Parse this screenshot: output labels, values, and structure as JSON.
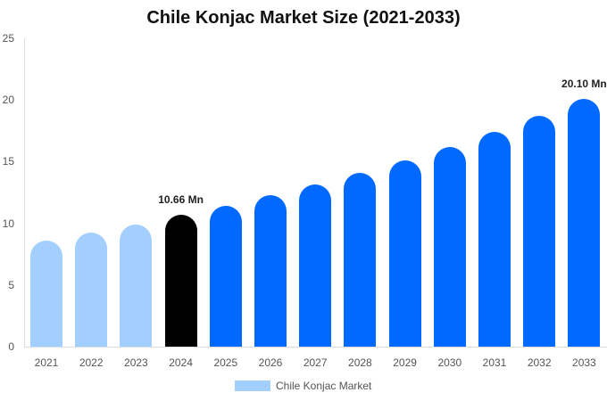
{
  "chart_data": {
    "type": "bar",
    "title": "Chile Konjac Market Size (2021-2033)",
    "xlabel": "",
    "ylabel": "",
    "ylim": [
      0,
      25
    ],
    "yticks": [
      0,
      5,
      10,
      15,
      20,
      25
    ],
    "grid": false,
    "legend_position": "bottom",
    "categories": [
      "2021",
      "2022",
      "2023",
      "2024",
      "2025",
      "2026",
      "2027",
      "2028",
      "2029",
      "2030",
      "2031",
      "2032",
      "2033"
    ],
    "series": [
      {
        "name": "Chile Konjac Market",
        "values": [
          8.6,
          9.25,
          9.9,
          10.66,
          11.4,
          12.3,
          13.15,
          14.1,
          15.1,
          16.2,
          17.4,
          18.7,
          20.1
        ]
      }
    ],
    "bar_colors": [
      "#a2cffe",
      "#a2cffe",
      "#a2cffe",
      "#000000",
      "#0069ff",
      "#0069ff",
      "#0069ff",
      "#0069ff",
      "#0069ff",
      "#0069ff",
      "#0069ff",
      "#0069ff",
      "#0069ff"
    ],
    "annotations": [
      {
        "category": "2024",
        "label": "10.66 Mn"
      },
      {
        "category": "2033",
        "label": "20.10 Mn"
      }
    ]
  },
  "legend": {
    "label": "Chile Konjac Market",
    "color": "#a2cffe"
  }
}
